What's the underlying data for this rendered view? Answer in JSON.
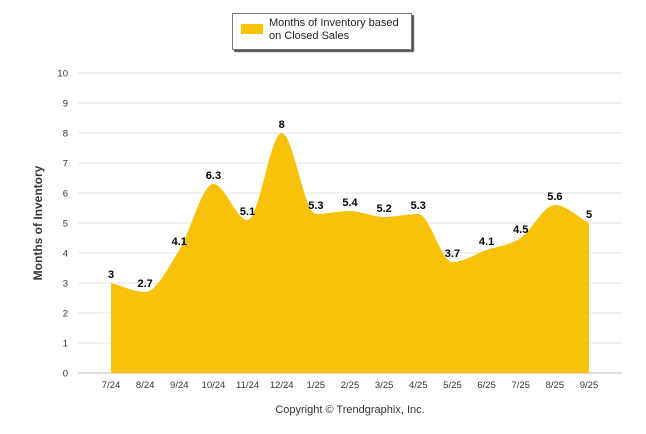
{
  "colors": {
    "series": "#f7c209",
    "grid": "#e6e6e6",
    "axis": "#bbbbbb"
  },
  "chart_data": {
    "type": "area",
    "title": "",
    "xlabel": "",
    "ylabel": "Months of Inventory",
    "ylim": [
      0,
      10
    ],
    "yticks": [
      0,
      1,
      2,
      3,
      4,
      5,
      6,
      7,
      8,
      9,
      10
    ],
    "grid": true,
    "legend_position": "top-center",
    "categories": [
      "7/24",
      "8/24",
      "9/24",
      "10/24",
      "11/24",
      "12/24",
      "1/25",
      "2/25",
      "3/25",
      "4/25",
      "5/25",
      "6/25",
      "7/25",
      "8/25",
      "9/25"
    ],
    "series": [
      {
        "name": "Months of Inventory based on Closed Sales",
        "values": [
          3,
          2.7,
          4.1,
          6.3,
          5.1,
          8,
          5.3,
          5.4,
          5.2,
          5.3,
          3.7,
          4.1,
          4.5,
          5.6,
          5
        ],
        "labels": [
          "3",
          "2.7",
          "4.1",
          "6.3",
          "5.1",
          "8",
          "5.3",
          "5.4",
          "5.2",
          "5.3",
          "3.7",
          "4.1",
          "4.5",
          "5.6",
          "5"
        ]
      }
    ]
  },
  "footer": {
    "copyright": "Copyright © Trendgraphix, Inc."
  }
}
